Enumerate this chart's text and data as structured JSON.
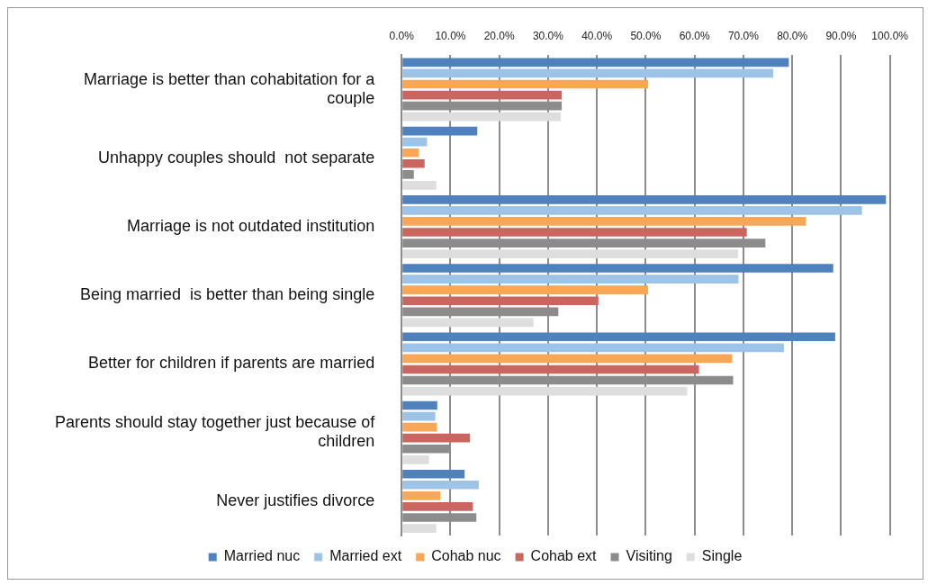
{
  "chart_data": {
    "type": "bar",
    "orientation": "horizontal",
    "categories": [
      "Marriage is better than cohabitation for a couple",
      "Unhappy couples should  not separate",
      "Marriage is not outdated institution",
      "Being married  is better than being single",
      "Better for children if parents are married",
      "Parents should stay together just because of children",
      "Never justifies divorce"
    ],
    "series": [
      {
        "name": "Married nuc",
        "color": "#4f81bd",
        "values": [
          79.3,
          15.5,
          99.2,
          88.4,
          88.8,
          7.3,
          12.9
        ]
      },
      {
        "name": "Married ext",
        "color": "#9dc3e6",
        "values": [
          76.1,
          5.2,
          94.3,
          69.0,
          78.3,
          6.9,
          15.8
        ]
      },
      {
        "name": "Cohab nuc",
        "color": "#f9a656",
        "values": [
          50.5,
          3.5,
          82.8,
          50.5,
          67.7,
          7.2,
          7.9
        ]
      },
      {
        "name": "Cohab ext",
        "color": "#cb6560",
        "values": [
          32.8,
          4.7,
          70.7,
          40.3,
          60.9,
          14.0,
          14.6
        ]
      },
      {
        "name": "Visiting",
        "color": "#8c8c8c",
        "values": [
          32.8,
          2.5,
          74.5,
          32.1,
          67.9,
          10.0,
          15.3
        ]
      },
      {
        "name": "Single",
        "color": "#dedede",
        "values": [
          32.6,
          7.1,
          68.9,
          27.0,
          58.5,
          5.6,
          7.1
        ]
      }
    ],
    "xlim": [
      0,
      100
    ],
    "xticks": [
      {
        "value": 0,
        "label": "0.0%"
      },
      {
        "value": 10,
        "label": "10.0%"
      },
      {
        "value": 20,
        "label": "20.0%"
      },
      {
        "value": 30,
        "label": "30.0%"
      },
      {
        "value": 40,
        "label": "40.0%"
      },
      {
        "value": 50,
        "label": "50.0%"
      },
      {
        "value": 60,
        "label": "60.0%"
      },
      {
        "value": 70,
        "label": "70.0%"
      },
      {
        "value": 80,
        "label": "80.0%"
      },
      {
        "value": 90,
        "label": "90.0%"
      },
      {
        "value": 100,
        "label": "100.0%"
      }
    ],
    "grid": "x",
    "legend": "bottom"
  }
}
